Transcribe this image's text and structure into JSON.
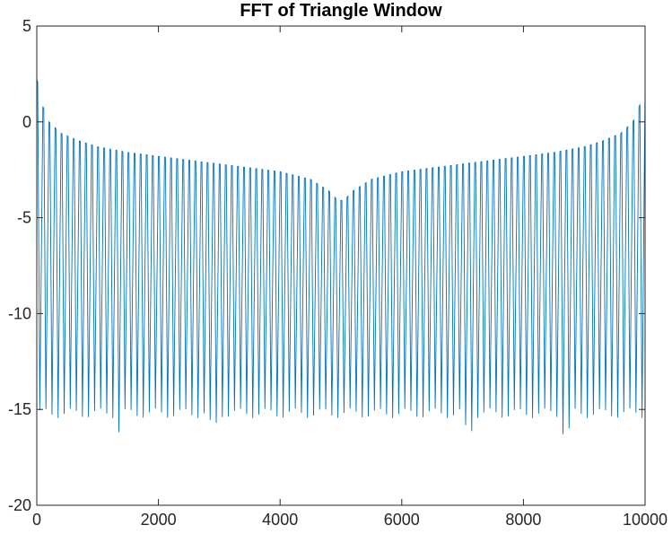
{
  "chart_data": {
    "type": "line",
    "title": "FFT of Triangle Window",
    "xlabel": "",
    "ylabel": "",
    "xlim": [
      0,
      10000
    ],
    "ylim": [
      -20,
      5
    ],
    "grid": false,
    "x_ticks": [
      0,
      2000,
      4000,
      6000,
      8000,
      10000
    ],
    "y_ticks": [
      5,
      0,
      -5,
      -10,
      -15,
      -20
    ],
    "x_tick_labels": [
      "0",
      "2000",
      "4000",
      "6000",
      "8000",
      "10000"
    ],
    "y_tick_labels": [
      "5",
      "0",
      "-5",
      "-10",
      "-15",
      "-20"
    ],
    "series": [
      {
        "color": "#0072BD",
        "description_values": {
          "peak_envelope": [
            [
              0,
              2.2
            ],
            [
              30,
              2.0
            ],
            [
              60,
              1.7
            ],
            [
              100,
              0.8
            ],
            [
              200,
              0.0
            ],
            [
              400,
              -0.6
            ],
            [
              700,
              -1.0
            ],
            [
              1000,
              -1.3
            ],
            [
              1500,
              -1.6
            ],
            [
              2000,
              -1.8
            ],
            [
              2500,
              -2.0
            ],
            [
              3000,
              -2.2
            ],
            [
              3500,
              -2.4
            ],
            [
              4000,
              -2.6
            ],
            [
              4500,
              -3.0
            ],
            [
              4800,
              -3.6
            ],
            [
              4950,
              -4.1
            ],
            [
              5050,
              -4.1
            ],
            [
              5200,
              -3.6
            ],
            [
              5500,
              -3.0
            ],
            [
              6000,
              -2.6
            ],
            [
              6500,
              -2.4
            ],
            [
              7000,
              -2.2
            ],
            [
              7500,
              -2.0
            ],
            [
              8000,
              -1.8
            ],
            [
              8500,
              -1.6
            ],
            [
              9000,
              -1.3
            ],
            [
              9300,
              -1.0
            ],
            [
              9600,
              -0.6
            ],
            [
              9800,
              0.0
            ],
            [
              9900,
              0.8
            ],
            [
              9970,
              1.2
            ],
            [
              10000,
              1.8
            ]
          ],
          "trough_level": -15.2,
          "deep_troughs": [
            [
              1380,
              -16.1
            ],
            [
              2900,
              -15.8
            ],
            [
              7100,
              -16.0
            ],
            [
              8700,
              -16.1
            ]
          ],
          "oscillation_count": 100
        }
      }
    ]
  }
}
